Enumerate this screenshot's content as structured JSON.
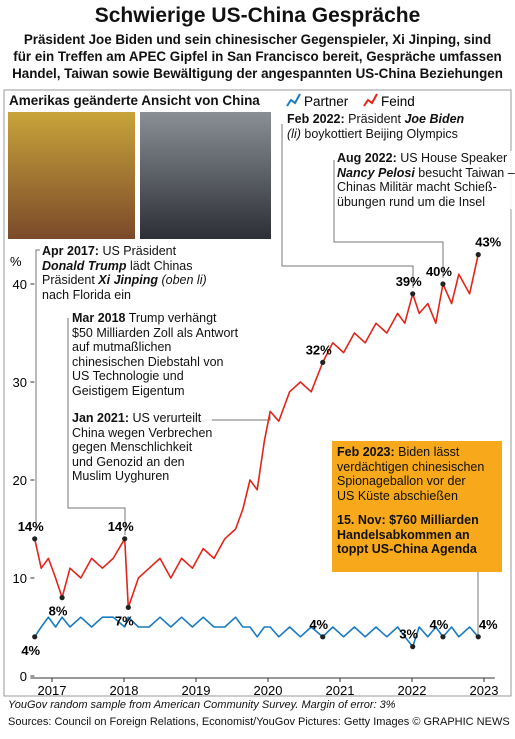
{
  "chart_data": {
    "type": "line",
    "title": "Schwierige US-China Gespräche",
    "subtitle": [
      "Präsident Joe Biden und sein chinesischer Gegenspieler, Xi Jinping, sind",
      "für ein Treffen am APEC Gipfel in San Francisco bereit, Gespräche umfassen",
      "Handel, Taiwan sowie Bewältigung der angespannten US-China Beziehungen"
    ],
    "chart_title": "Amerikas geänderte Ansicht von China",
    "y_unit": "%",
    "x": [
      2017.26,
      2017.35,
      2017.45,
      2017.55,
      2017.64,
      2017.75,
      2017.9,
      2018.05,
      2018.2,
      2018.35,
      2018.51,
      2018.56,
      2018.7,
      2018.85,
      2019.0,
      2019.15,
      2019.3,
      2019.45,
      2019.6,
      2019.75,
      2019.9,
      2020.05,
      2020.15,
      2020.25,
      2020.35,
      2020.45,
      2020.53,
      2020.65,
      2020.8,
      2020.95,
      2021.1,
      2021.26,
      2021.4,
      2021.55,
      2021.7,
      2021.85,
      2022.0,
      2022.15,
      2022.3,
      2022.4,
      2022.51,
      2022.6,
      2022.72,
      2022.83,
      2022.93,
      2023.05,
      2023.15,
      2023.3,
      2023.42
    ],
    "series": [
      {
        "name": "Partner",
        "color": "#1a7bc0",
        "values": [
          4,
          5,
          6,
          5,
          6,
          5,
          6,
          5,
          6,
          6,
          5,
          6,
          5,
          5,
          6,
          5,
          6,
          5,
          6,
          5,
          5,
          6,
          5,
          5,
          4,
          5,
          5,
          4,
          5,
          4,
          5,
          4,
          5,
          4,
          5,
          4,
          5,
          4,
          5,
          4,
          3,
          5,
          4,
          5,
          4,
          5,
          4,
          5,
          4
        ],
        "value_labels": [
          "4%",
          null,
          null,
          null,
          null,
          null,
          null,
          null,
          null,
          null,
          null,
          null,
          null,
          null,
          null,
          null,
          null,
          null,
          null,
          null,
          null,
          null,
          null,
          null,
          null,
          null,
          null,
          null,
          null,
          null,
          null,
          "4%",
          null,
          null,
          null,
          null,
          null,
          null,
          null,
          null,
          "3%",
          null,
          null,
          null,
          "4%",
          null,
          null,
          null,
          "4%"
        ]
      },
      {
        "name": "Feind",
        "color": "#e0261b",
        "values": [
          14,
          11,
          12,
          10,
          8,
          11,
          10,
          12,
          11,
          12,
          14,
          7,
          10,
          11,
          12,
          10,
          12,
          11,
          13,
          12,
          14,
          15,
          17,
          20,
          19,
          24,
          27,
          26,
          29,
          30,
          29,
          32,
          34,
          33,
          35,
          34,
          36,
          35,
          37,
          36,
          39,
          37,
          38,
          36,
          40,
          38,
          41,
          39,
          43
        ],
        "value_labels": [
          "14%",
          null,
          null,
          null,
          "8%",
          null,
          null,
          null,
          null,
          null,
          "14%",
          "7%",
          null,
          null,
          null,
          null,
          null,
          null,
          null,
          null,
          null,
          null,
          null,
          null,
          null,
          null,
          null,
          null,
          null,
          null,
          null,
          "32%",
          null,
          null,
          null,
          null,
          null,
          null,
          null,
          null,
          "39%",
          null,
          null,
          null,
          "40%",
          null,
          null,
          null,
          "43%"
        ]
      }
    ],
    "xlim": [
      2017.2,
      2023.65
    ],
    "xticks": [
      {
        "value": 2017.5,
        "label": "2017"
      },
      {
        "value": 2018.5,
        "label": "2018"
      },
      {
        "value": 2019.5,
        "label": "2019"
      },
      {
        "value": 2020.5,
        "label": "2020"
      },
      {
        "value": 2021.5,
        "label": "2021"
      },
      {
        "value": 2022.5,
        "label": "2022"
      },
      {
        "value": 2023.5,
        "label": "2023"
      }
    ],
    "ylim": [
      0,
      45
    ],
    "yticks": [
      0,
      10,
      20,
      30,
      40
    ],
    "grid": false,
    "annotations": [
      {
        "lines": [
          [
            {
              "text": "Feb 2022:",
              "bold": true
            },
            {
              "text": " Präsident "
            },
            {
              "text": "Joe Biden",
              "bold": true,
              "italic": true
            }
          ],
          [
            {
              "text": "(li)",
              "italic": true
            },
            {
              "text": " boykottiert Beijing Olympics"
            }
          ]
        ]
      },
      {
        "lines": [
          [
            {
              "text": "Aug 2022:",
              "bold": true
            },
            {
              "text": " US House Speaker"
            }
          ],
          [
            {
              "text": "Nancy Pelosi",
              "bold": true,
              "italic": true
            },
            {
              "text": " besucht Taiwan –"
            }
          ],
          [
            {
              "text": "Chinas Militär macht Schieß-"
            }
          ],
          [
            {
              "text": "übungen rund um die Insel"
            }
          ]
        ]
      },
      {
        "lines": [
          [
            {
              "text": "Apr 2017:",
              "bold": true
            },
            {
              "text": " US Präsident"
            }
          ],
          [
            {
              "text": "Donald Trump",
              "bold": true,
              "italic": true
            },
            {
              "text": " lädt Chinas"
            }
          ],
          [
            {
              "text": "Präsident "
            },
            {
              "text": "Xi Jinping",
              "bold": true,
              "italic": true
            },
            {
              "text": " (oben li)",
              "italic": true
            }
          ],
          [
            {
              "text": "nach Florida ein"
            }
          ]
        ]
      },
      {
        "lines": [
          [
            {
              "text": "Mar 2018",
              "bold": true
            },
            {
              "text": " Trump verhängt"
            }
          ],
          [
            {
              "text": "$50 Milliarden Zoll als Antwort"
            }
          ],
          [
            {
              "text": "auf mutmaßlichen"
            }
          ],
          [
            {
              "text": "chinesischen Diebstahl von"
            }
          ],
          [
            {
              "text": "US Technologie und"
            }
          ],
          [
            {
              "text": "Geistigem Eigentum"
            }
          ]
        ]
      },
      {
        "lines": [
          [
            {
              "text": "Jan 2021:",
              "bold": true
            },
            {
              "text": " US verurteilt"
            }
          ],
          [
            {
              "text": "China wegen Verbrechen"
            }
          ],
          [
            {
              "text": "gegen Menschlichkeit"
            }
          ],
          [
            {
              "text": "und Genozid an den"
            }
          ],
          [
            {
              "text": "Muslim Uyghuren"
            }
          ]
        ]
      },
      {
        "lines": [
          [
            {
              "text": "Feb 2023:",
              "bold": true
            },
            {
              "text": " Biden lässt"
            }
          ],
          [
            {
              "text": "verdächtigen chinesischen"
            }
          ],
          [
            {
              "text": "Spionageballon vor der"
            }
          ],
          [
            {
              "text": "US Küste abschießen"
            }
          ]
        ]
      },
      {
        "lines": [
          [
            {
              "text": "15. Nov: $760 Milliarden",
              "bold": true
            }
          ],
          [
            {
              "text": "Handelsabkommen an",
              "bold": true
            }
          ],
          [
            {
              "text": "toppt US-China Agenda",
              "bold": true
            }
          ]
        ]
      }
    ],
    "note": "YouGov random sample from American Community Survey. Margin of error: 3%",
    "source": "Sources: Council on Foreign Relations, Economist/YouGov Pictures: Getty Images © GRAPHIC NEWS"
  }
}
